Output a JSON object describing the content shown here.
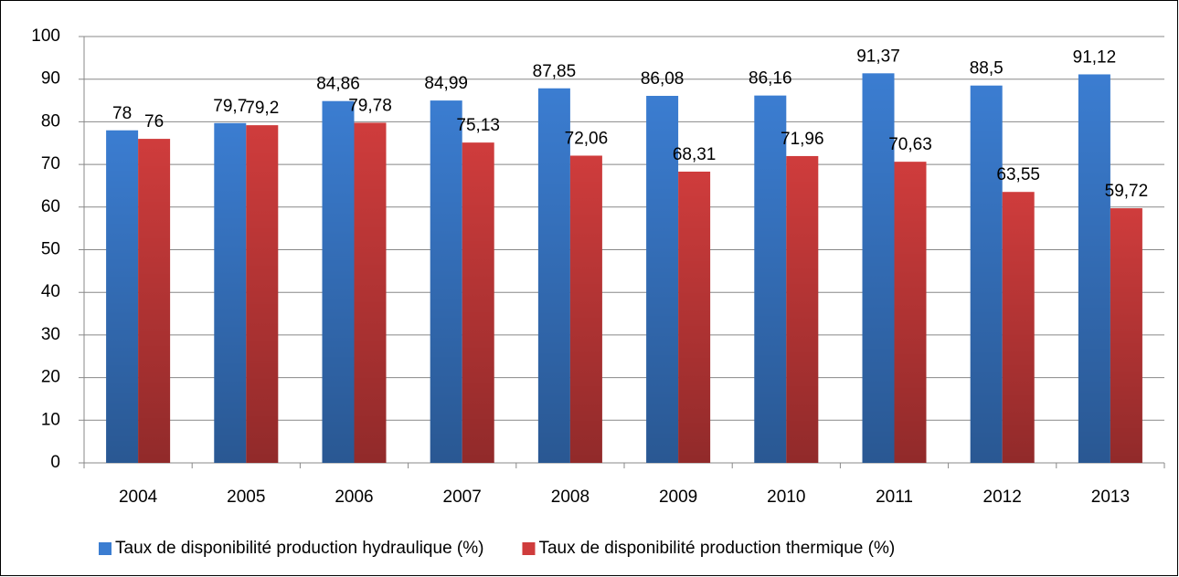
{
  "chart_data": {
    "type": "bar",
    "categories": [
      "2004",
      "2005",
      "2006",
      "2007",
      "2008",
      "2009",
      "2010",
      "2011",
      "2012",
      "2013"
    ],
    "series": [
      {
        "name": "Taux de disponibilité production hydraulique (%)",
        "color": "#3b7dd1",
        "values": [
          78,
          79.7,
          84.86,
          84.99,
          87.85,
          86.08,
          86.16,
          91.37,
          88.5,
          91.12
        ],
        "value_labels": [
          "78",
          "79,7",
          "84,86",
          "84,99",
          "87,85",
          "86,08",
          "86,16",
          "91,37",
          "88,5",
          "91,12"
        ]
      },
      {
        "name": "Taux de disponibilité production thermique (%)",
        "color": "#cf3c3c",
        "values": [
          76,
          79.2,
          79.78,
          75.13,
          72.06,
          68.31,
          71.96,
          70.63,
          63.55,
          59.72
        ],
        "value_labels": [
          "76",
          "79,2",
          "79,78",
          "75,13",
          "72,06",
          "68,31",
          "71,96",
          "70,63",
          "63,55",
          "59,72"
        ]
      }
    ],
    "ylim": [
      0,
      100
    ],
    "yticks": [
      0,
      10,
      20,
      30,
      40,
      50,
      60,
      70,
      80,
      90,
      100
    ],
    "grid": true,
    "legend": "bottom"
  }
}
